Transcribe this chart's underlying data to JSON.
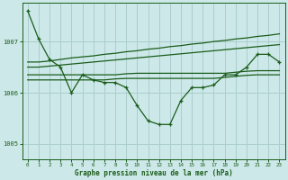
{
  "xlabel": "Graphe pression niveau de la mer (hPa)",
  "background_color": "#cce8e8",
  "grid_color": "#aacece",
  "line_color": "#1a5c1a",
  "x_ticks": [
    0,
    1,
    2,
    3,
    4,
    5,
    6,
    7,
    8,
    9,
    10,
    11,
    12,
    13,
    14,
    15,
    16,
    17,
    18,
    19,
    20,
    21,
    22,
    23
  ],
  "ylim": [
    1004.7,
    1007.75
  ],
  "yticks": [
    1005,
    1006,
    1007
  ],
  "main_data": [
    1007.6,
    1007.05,
    1006.65,
    1006.5,
    1006.0,
    1006.35,
    1006.25,
    1006.2,
    1006.2,
    1006.1,
    1005.75,
    1005.45,
    1005.38,
    1005.38,
    1005.85,
    1006.1,
    1006.1,
    1006.15,
    1006.35,
    1006.35,
    1006.5,
    1006.75,
    1006.75,
    1006.6
  ],
  "upper_band1": [
    1006.6,
    1006.6,
    1006.62,
    1006.65,
    1006.68,
    1006.7,
    1006.72,
    1006.75,
    1006.77,
    1006.8,
    1006.82,
    1006.85,
    1006.87,
    1006.9,
    1006.92,
    1006.95,
    1006.97,
    1007.0,
    1007.02,
    1007.05,
    1007.07,
    1007.1,
    1007.12,
    1007.15
  ],
  "upper_band2": [
    1006.5,
    1006.5,
    1006.52,
    1006.54,
    1006.56,
    1006.58,
    1006.6,
    1006.62,
    1006.64,
    1006.66,
    1006.68,
    1006.7,
    1006.72,
    1006.74,
    1006.76,
    1006.78,
    1006.8,
    1006.82,
    1006.84,
    1006.86,
    1006.88,
    1006.9,
    1006.92,
    1006.94
  ],
  "lower_band1": [
    1006.35,
    1006.35,
    1006.35,
    1006.35,
    1006.35,
    1006.35,
    1006.35,
    1006.35,
    1006.35,
    1006.37,
    1006.38,
    1006.38,
    1006.38,
    1006.38,
    1006.38,
    1006.38,
    1006.38,
    1006.38,
    1006.38,
    1006.4,
    1006.42,
    1006.43,
    1006.43,
    1006.43
  ],
  "lower_band2": [
    1006.25,
    1006.25,
    1006.25,
    1006.25,
    1006.25,
    1006.25,
    1006.25,
    1006.25,
    1006.27,
    1006.28,
    1006.28,
    1006.28,
    1006.28,
    1006.28,
    1006.28,
    1006.28,
    1006.28,
    1006.28,
    1006.3,
    1006.32,
    1006.34,
    1006.35,
    1006.35,
    1006.35
  ]
}
